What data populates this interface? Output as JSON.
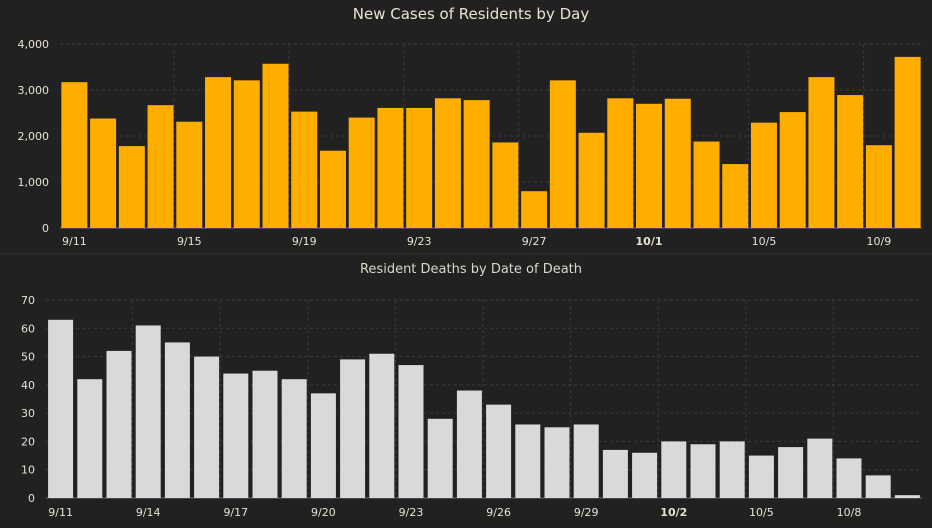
{
  "colors": {
    "background": "#212121",
    "cases_bar": "#ffae00",
    "deaths_bar": "#d9d9d9"
  },
  "chart_data": [
    {
      "id": "cases",
      "type": "bar",
      "title": "New Cases of Residents by Day",
      "xlabel": "",
      "ylabel": "",
      "ylim": [
        0,
        4000
      ],
      "yticks": [
        0,
        1000,
        2000,
        3000,
        4000
      ],
      "ytick_labels": [
        "0",
        "1,000",
        "2,000",
        "3,000",
        "4,000"
      ],
      "grid": true,
      "categories": [
        "9/11",
        "9/12",
        "9/13",
        "9/14",
        "9/15",
        "9/16",
        "9/17",
        "9/18",
        "9/19",
        "9/20",
        "9/21",
        "9/22",
        "9/23",
        "9/24",
        "9/25",
        "9/26",
        "9/27",
        "9/28",
        "9/29",
        "9/30",
        "10/1",
        "10/2",
        "10/3",
        "10/4",
        "10/5",
        "10/6",
        "10/7",
        "10/8",
        "10/9",
        "10/10"
      ],
      "values": [
        3170,
        2380,
        1780,
        2670,
        2310,
        3280,
        3210,
        3570,
        2530,
        1680,
        2400,
        2610,
        2610,
        2820,
        2780,
        1860,
        800,
        3210,
        2070,
        2820,
        2700,
        2810,
        1880,
        1390,
        2290,
        2520,
        3280,
        2890,
        1800,
        3720
      ],
      "xtick_labels": [
        {
          "index": 0,
          "label": "9/11",
          "bold": false
        },
        {
          "index": 4,
          "label": "9/15",
          "bold": false
        },
        {
          "index": 8,
          "label": "9/19",
          "bold": false
        },
        {
          "index": 12,
          "label": "9/23",
          "bold": false
        },
        {
          "index": 16,
          "label": "9/27",
          "bold": false
        },
        {
          "index": 20,
          "label": "10/1",
          "bold": true
        },
        {
          "index": 24,
          "label": "10/5",
          "bold": false
        },
        {
          "index": 28,
          "label": "10/9",
          "bold": false
        }
      ]
    },
    {
      "id": "deaths",
      "type": "bar",
      "title": "Resident Deaths by Date of Death",
      "xlabel": "",
      "ylabel": "",
      "ylim": [
        0,
        70
      ],
      "yticks": [
        0,
        10,
        20,
        30,
        40,
        50,
        60,
        70
      ],
      "ytick_labels": [
        "0",
        "10",
        "20",
        "30",
        "40",
        "50",
        "60",
        "70"
      ],
      "grid": true,
      "categories": [
        "9/11",
        "9/12",
        "9/13",
        "9/14",
        "9/15",
        "9/16",
        "9/17",
        "9/18",
        "9/19",
        "9/20",
        "9/21",
        "9/22",
        "9/23",
        "9/24",
        "9/25",
        "9/26",
        "9/27",
        "9/28",
        "9/29",
        "9/30",
        "10/1",
        "10/2",
        "10/3",
        "10/4",
        "10/5",
        "10/6",
        "10/7",
        "10/8",
        "10/9",
        "10/10"
      ],
      "values": [
        63,
        42,
        52,
        61,
        55,
        50,
        44,
        45,
        42,
        37,
        49,
        51,
        47,
        28,
        38,
        33,
        26,
        25,
        26,
        17,
        16,
        20,
        19,
        20,
        15,
        18,
        21,
        14,
        8,
        1
      ],
      "xtick_labels": [
        {
          "index": 0,
          "label": "9/11",
          "bold": false
        },
        {
          "index": 3,
          "label": "9/14",
          "bold": false
        },
        {
          "index": 6,
          "label": "9/17",
          "bold": false
        },
        {
          "index": 9,
          "label": "9/20",
          "bold": false
        },
        {
          "index": 12,
          "label": "9/23",
          "bold": false
        },
        {
          "index": 15,
          "label": "9/26",
          "bold": false
        },
        {
          "index": 18,
          "label": "9/29",
          "bold": false
        },
        {
          "index": 21,
          "label": "10/2",
          "bold": true
        },
        {
          "index": 24,
          "label": "10/5",
          "bold": false
        },
        {
          "index": 27,
          "label": "10/8",
          "bold": false
        }
      ]
    }
  ]
}
